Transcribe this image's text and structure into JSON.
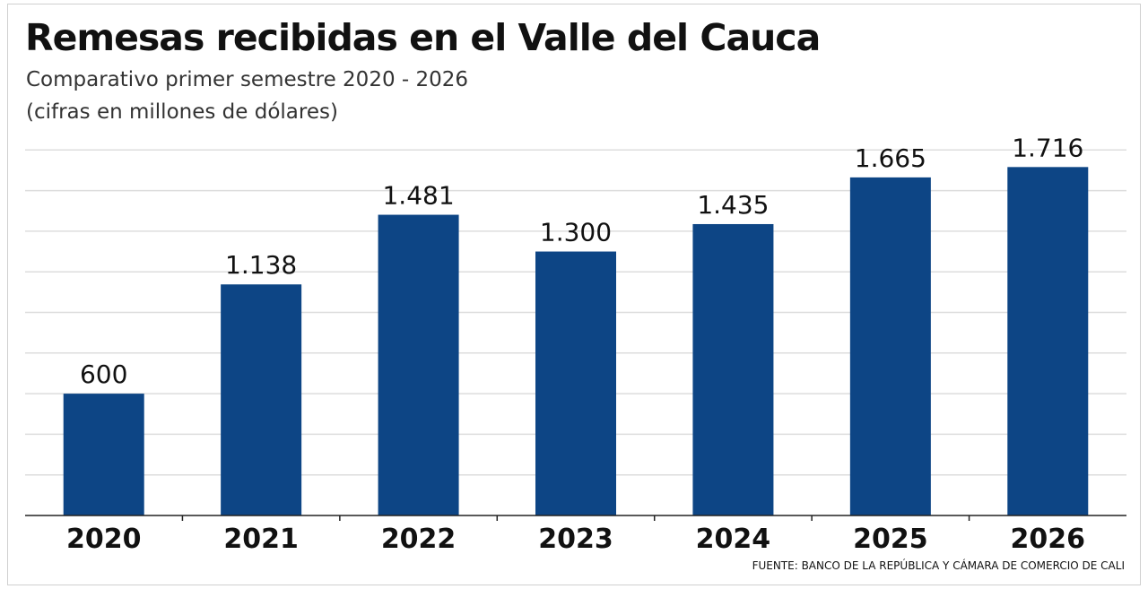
{
  "title": "Remesas recibidas en el Valle del Cauca",
  "subtitle": "Comparativo primer semestre 2020 - 2026",
  "unit_note": "(cifras en millones de dólares)",
  "source": "FUENTE: BANCO DE LA REPÚBLICA  Y CÁMARA DE COMERCIO DE CALI",
  "colors": {
    "bar": "#0d4585",
    "grid": "#dddddd",
    "axis": "#222222",
    "text": "#111111"
  },
  "chart_data": {
    "type": "bar",
    "categories": [
      "2020",
      "2021",
      "2022",
      "2023",
      "2024",
      "2025",
      "2026"
    ],
    "values": [
      600,
      1138,
      1481,
      1300,
      1435,
      1665,
      1716
    ],
    "value_labels": [
      "600",
      "1.138",
      "1.481",
      "1.300",
      "1.435",
      "1.665",
      "1.716"
    ],
    "title": "Remesas recibidas en el Valle del Cauca",
    "subtitle": "Comparativo primer semestre 2020 - 2026",
    "xlabel": "",
    "ylabel": "",
    "ylim": [
      0,
      2000
    ],
    "grid": true,
    "legend": "none"
  }
}
